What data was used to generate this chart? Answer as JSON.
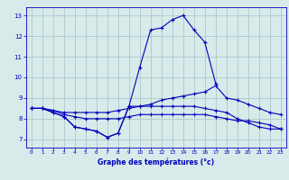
{
  "hours": [
    0,
    1,
    2,
    3,
    4,
    5,
    6,
    7,
    8,
    9,
    10,
    11,
    12,
    13,
    14,
    15,
    16,
    17,
    18,
    19,
    20,
    21,
    22,
    23
  ],
  "line_max": [
    8.5,
    8.5,
    8.3,
    8.1,
    7.6,
    7.5,
    7.4,
    7.1,
    7.3,
    8.6,
    10.5,
    12.3,
    12.4,
    12.8,
    13.0,
    12.3,
    11.7,
    9.7,
    null,
    null,
    null,
    null,
    null,
    null
  ],
  "line_avg_hi": [
    8.5,
    8.5,
    8.4,
    8.3,
    8.3,
    8.3,
    8.3,
    8.3,
    8.4,
    8.5,
    8.6,
    8.7,
    8.9,
    9.0,
    9.1,
    9.2,
    9.3,
    9.6,
    9.0,
    8.9,
    8.7,
    8.5,
    8.3,
    8.2
  ],
  "line_avg_lo": [
    8.5,
    8.5,
    8.4,
    8.2,
    8.1,
    8.0,
    8.0,
    8.0,
    8.0,
    8.1,
    8.2,
    8.2,
    8.2,
    8.2,
    8.2,
    8.2,
    8.2,
    8.1,
    8.0,
    7.9,
    7.9,
    7.8,
    7.7,
    7.5
  ],
  "line_min": [
    8.5,
    8.5,
    8.3,
    8.1,
    7.6,
    7.5,
    7.4,
    7.1,
    7.3,
    8.6,
    8.6,
    8.6,
    8.6,
    8.6,
    8.6,
    8.6,
    8.5,
    8.4,
    8.3,
    8.0,
    7.8,
    7.6,
    7.5,
    7.5
  ],
  "bg_color": "#d8eaea",
  "line_color": "#0000bb",
  "grid_color": "#a0c4c4",
  "xlabel": "Graphe des températures (°c)",
  "ylim": [
    6.6,
    13.4
  ],
  "xlim": [
    -0.5,
    23.5
  ],
  "yticks": [
    7,
    8,
    9,
    10,
    11,
    12,
    13
  ],
  "xticks": [
    0,
    1,
    2,
    3,
    4,
    5,
    6,
    7,
    8,
    9,
    10,
    11,
    12,
    13,
    14,
    15,
    16,
    17,
    18,
    19,
    20,
    21,
    22,
    23
  ]
}
